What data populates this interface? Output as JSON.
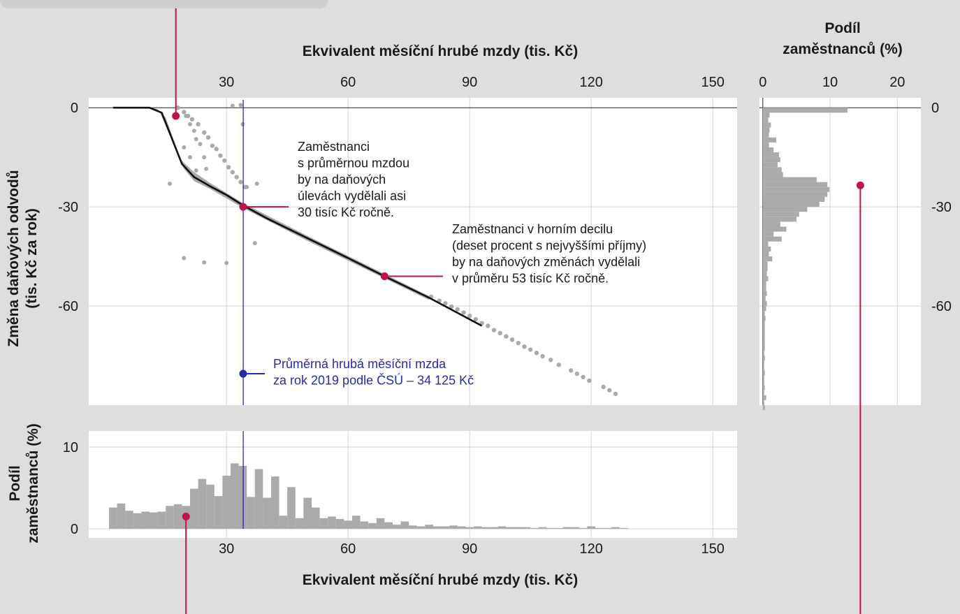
{
  "colors": {
    "background": "#dededc",
    "panel": "#ffffff",
    "gridline": "#d2d2d2",
    "points": "#aaaaaa",
    "bars": "#aaaaaa",
    "median_line": "#111111",
    "average_line": "#2a2aa8",
    "highlight": "#c0134a",
    "text": "#1a1a1a"
  },
  "chart_data": [
    {
      "type": "scatter",
      "xlabel": "Ekvivalent měsíční hrubé mzdy (tis. Kč)",
      "ylabel": "Změna daňových odvodů (tis. Kč za rok)",
      "x_ticks": [
        "30",
        "60",
        "90",
        "120",
        "150"
      ],
      "x_tick_values": [
        30,
        60,
        90,
        120,
        150
      ],
      "y_ticks": [
        "0",
        "-30",
        "-60"
      ],
      "y_tick_values": [
        0,
        -30,
        -60
      ],
      "xlim": [
        -4,
        156
      ],
      "ylim": [
        -90,
        3
      ],
      "grid": true,
      "reference_line_x": 34.125,
      "series": [
        {
          "line": [
            [
              2,
              0
            ],
            [
              11,
              0
            ],
            [
              14,
              -1.5
            ],
            [
              19,
              -17
            ],
            [
              22,
              -21
            ],
            [
              26,
              -23.8
            ],
            [
              30,
              -26.4
            ],
            [
              34,
              -29.5
            ],
            [
              40,
              -33.5
            ],
            [
              50,
              -39.5
            ],
            [
              60,
              -45.5
            ],
            [
              69,
              -51
            ],
            [
              80,
              -57.5
            ],
            [
              93,
              -66
            ]
          ],
          "band_upper": [
            [
              11,
              0
            ],
            [
              13.5,
              -1.2
            ],
            [
              18.5,
              -15.5
            ],
            [
              22,
              -19.5
            ],
            [
              26,
              -22.8
            ],
            [
              34,
              -28.8
            ],
            [
              50,
              -38.8
            ],
            [
              80,
              -57
            ]
          ],
          "band_lower": [
            [
              13,
              -0.5
            ],
            [
              15,
              -3
            ],
            [
              19.5,
              -18.5
            ],
            [
              22,
              -22.2
            ],
            [
              26,
              -24.6
            ],
            [
              34,
              -30.3
            ],
            [
              50,
              -40.3
            ],
            [
              80,
              -58.2
            ]
          ],
          "upper_band_points": [
            [
              18,
              0
            ],
            [
              19.5,
              -1.3
            ],
            [
              20.5,
              -2.5
            ],
            [
              21.5,
              -3.5
            ],
            [
              23,
              -5
            ],
            [
              24.5,
              -7.5
            ],
            [
              25.5,
              -9
            ],
            [
              26.5,
              -11.5
            ],
            [
              27.5,
              -12.5
            ],
            [
              28.5,
              -14.5
            ],
            [
              29.5,
              -16
            ],
            [
              30.5,
              -18
            ],
            [
              31.5,
              -19.5
            ],
            [
              32.5,
              -21
            ],
            [
              33.5,
              -22.5
            ],
            [
              34.5,
              -24
            ]
          ],
          "outliers": [
            [
              20,
              -2.5
            ],
            [
              21,
              -5
            ],
            [
              22,
              -7
            ],
            [
              22.5,
              -9.5
            ],
            [
              19.5,
              -12
            ],
            [
              21,
              -15
            ],
            [
              23.5,
              -11
            ],
            [
              24.5,
              -15
            ],
            [
              25,
              -18.5
            ],
            [
              22.5,
              -19
            ],
            [
              16,
              -23
            ],
            [
              19.5,
              -45.5
            ],
            [
              24.5,
              -46.8
            ],
            [
              30,
              -47
            ],
            [
              34,
              -5
            ],
            [
              37,
              -41
            ],
            [
              37.5,
              -23
            ],
            [
              35,
              -24
            ],
            [
              33.5,
              0.8
            ],
            [
              31.5,
              0.6
            ]
          ],
          "tail_points": [
            [
              80.5,
              -57.2
            ],
            [
              82.5,
              -58.4
            ],
            [
              84,
              -59.2
            ],
            [
              85.5,
              -60.2
            ],
            [
              87,
              -61
            ],
            [
              88.5,
              -62
            ],
            [
              90,
              -63
            ],
            [
              91.5,
              -64
            ],
            [
              93,
              -65.2
            ],
            [
              94.5,
              -66
            ],
            [
              96,
              -67.3
            ],
            [
              97.5,
              -68.2
            ],
            [
              99,
              -69.2
            ],
            [
              100.5,
              -70.2
            ],
            [
              102,
              -71.2
            ],
            [
              103.5,
              -72.3
            ],
            [
              105,
              -73.2
            ],
            [
              106.5,
              -74.2
            ],
            [
              108,
              -75.2
            ],
            [
              110,
              -76.3
            ],
            [
              112,
              -77.8
            ],
            [
              115,
              -79.5
            ],
            [
              116.5,
              -80.5
            ],
            [
              118,
              -81.5
            ],
            [
              119.5,
              -82.6
            ],
            [
              123,
              -84.5
            ],
            [
              124.5,
              -85.5
            ],
            [
              126,
              -86.6
            ]
          ]
        }
      ],
      "annotations": {
        "average_wage": "Zaměstnanci\ns průměrnou mzdou\nby na daňových\núlevách vydělali asi\n30 tisíc Kč ročně.",
        "top_decile": "Zaměstnanci v horním decilu\n(deset procent s nejvyššími příjmy)\nby na daňových změnách vydělali\nv průměru 53 tisíc Kč ročně.",
        "average_line_label": "Průměrná hrubá měsíční mzda\nza rok 2019 podle ČSÚ – 34 125 Kč"
      },
      "markers": [
        {
          "x": 34.1,
          "y": -30
        },
        {
          "x": 69,
          "y": -51
        },
        {
          "x": 17.5,
          "y": -2.5
        },
        {
          "x": 34.1,
          "y": -80.5
        }
      ]
    },
    {
      "type": "bar",
      "xlabel": "Ekvivalent měsíční hrubé mzdy (tis. Kč)",
      "ylabel": "Podíl zaměstnanců (%)",
      "x_ticks": [
        "30",
        "60",
        "90",
        "120",
        "150"
      ],
      "x_tick_values": [
        30,
        60,
        90,
        120,
        150
      ],
      "y_ticks": [
        "0",
        "10"
      ],
      "y_tick_values": [
        0,
        10
      ],
      "ylim": [
        0,
        12
      ],
      "bin_width": 2,
      "bin_start": 1,
      "values": [
        2.6,
        3.1,
        2.2,
        1.9,
        2.1,
        2.0,
        2.1,
        2.8,
        3.0,
        2.8,
        4.9,
        6.1,
        5.4,
        4.0,
        6.5,
        8.0,
        7.7,
        3.9,
        7.3,
        3.8,
        6.4,
        1.6,
        5.1,
        1.3,
        3.8,
        2.6,
        1.3,
        1.5,
        1.2,
        1.0,
        1.6,
        0.9,
        0.7,
        1.3,
        0.8,
        0.5,
        0.9,
        0.4,
        0.3,
        0.5,
        0.3,
        0.3,
        0.4,
        0.3,
        0.2,
        0.3,
        0.2,
        0.2,
        0.3,
        0.2,
        0.2,
        0.2,
        0.1,
        0.2,
        0.1,
        0.1,
        0.2,
        0.2,
        0.1,
        0.3,
        0.1,
        0.1,
        0.2,
        0.1
      ],
      "markers": [
        {
          "x": 20,
          "y": 1.5
        }
      ]
    },
    {
      "type": "bar",
      "orientation": "horizontal",
      "title": "Podíl\nzaměstnanců (%)",
      "x_ticks": [
        "0",
        "10",
        "20"
      ],
      "x_tick_values": [
        0,
        10,
        20
      ],
      "xlim": [
        -0.5,
        23.5
      ],
      "y_ticks": [
        "0",
        "-30",
        "-60"
      ],
      "y_tick_values": [
        0,
        -30,
        -60
      ],
      "bin_height": 1.5,
      "bin_start": 0.75,
      "values": [
        12.6,
        1.0,
        0.8,
        1.2,
        1.0,
        0.9,
        2.0,
        0.9,
        1.6,
        2.4,
        2.6,
        2.2,
        2.8,
        3.0,
        8.0,
        9.6,
        9.9,
        9.6,
        9.2,
        8.4,
        6.6,
        5.4,
        5.0,
        2.6,
        3.5,
        1.6,
        2.8,
        0.8,
        1.2,
        0.9,
        1.4,
        0.7,
        0.7,
        0.6,
        0.8,
        0.5,
        0.5,
        0.6,
        0.4,
        0.6,
        0.5,
        0.3,
        0.4,
        0.3,
        0.3,
        0.3,
        0.3,
        0.3,
        0.3,
        0.2,
        0.3,
        0.2,
        0.2,
        0.3,
        0.2,
        0.2,
        0.3,
        0.2,
        0.5,
        0.2,
        0.3
      ],
      "markers": [
        {
          "x": 14.5,
          "y": -23.5
        }
      ]
    }
  ]
}
